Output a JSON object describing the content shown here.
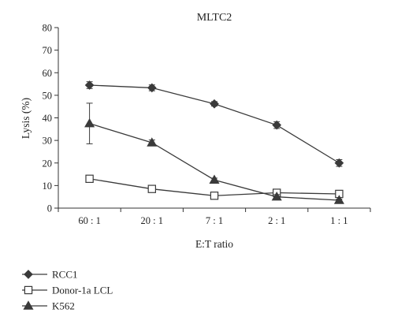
{
  "chart_data": {
    "type": "line",
    "title": "MLTC2",
    "xlabel": "E:T ratio",
    "ylabel": "Lysis (%)",
    "categories": [
      "60 : 1",
      "20 : 1",
      "7 : 1",
      "2 : 1",
      "1 : 1"
    ],
    "ylim": [
      0,
      80
    ],
    "yticks": [
      0,
      10,
      20,
      30,
      40,
      50,
      60,
      70,
      80
    ],
    "grid": false,
    "legend_position": "bottom-left",
    "series": [
      {
        "name": "RCC1",
        "marker": "diamond",
        "filled": true,
        "color": "#3a3a3a",
        "values": [
          54.5,
          53.3,
          46.2,
          36.8,
          20.0
        ],
        "errors": [
          1.5,
          1.3,
          1.0,
          1.5,
          1.5
        ]
      },
      {
        "name": "Donor-1a LCL",
        "marker": "square",
        "filled": false,
        "color": "#3a3a3a",
        "values": [
          13.0,
          8.5,
          5.5,
          6.8,
          6.3
        ],
        "errors": [
          0,
          0,
          0,
          0,
          0
        ]
      },
      {
        "name": "K562",
        "marker": "triangle",
        "filled": true,
        "color": "#3a3a3a",
        "values": [
          37.5,
          29.0,
          12.5,
          5.0,
          3.5
        ],
        "errors": [
          9.0,
          1.2,
          0.8,
          1.0,
          0.5
        ]
      }
    ]
  }
}
